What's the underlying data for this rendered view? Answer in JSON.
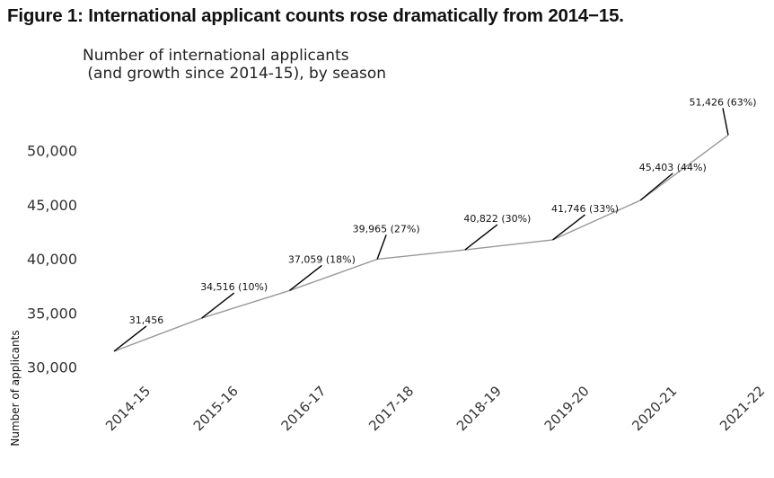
{
  "figure_title": "Figure 1: International applicant counts rose dramatically from 2014−15.",
  "chart_data": {
    "type": "line",
    "title": "Number of international applicants\n (and growth since 2014-15), by season",
    "xlabel": "",
    "ylabel": "Number of applicants",
    "categories": [
      "2014-15",
      "2015-16",
      "2016-17",
      "2017-18",
      "2018-19",
      "2019-20",
      "2020-21",
      "2021-22"
    ],
    "values": [
      31456,
      34516,
      37059,
      39965,
      40822,
      41746,
      45403,
      51426
    ],
    "data_labels": [
      "31,456",
      "34,516 (10%)",
      "37,059 (18%)",
      "39,965 (27%)",
      "40,822 (30%)",
      "41,746 (33%)",
      "45,403 (44%)",
      "51,426 (63%)"
    ],
    "yticks": [
      30000,
      35000,
      40000,
      45000,
      50000
    ],
    "ytick_labels": [
      "30,000",
      "35,000",
      "40,000",
      "45,000",
      "50,000"
    ],
    "ylim": [
      29000,
      54000
    ],
    "grid": false,
    "line_color": "#999999",
    "annotation_color": "#000000"
  }
}
